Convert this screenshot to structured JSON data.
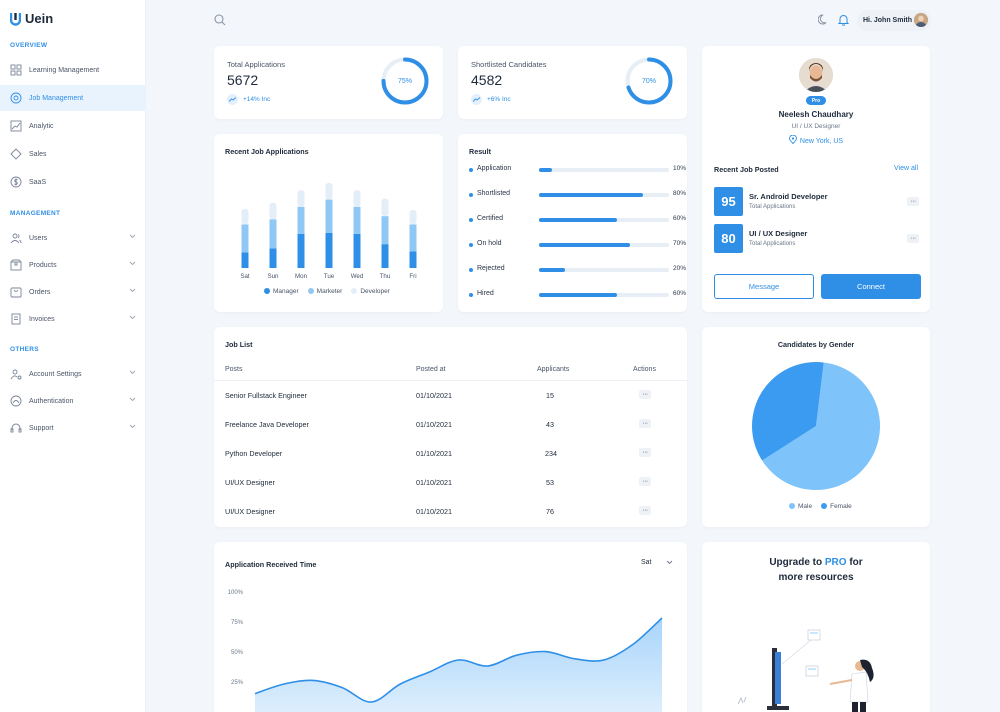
{
  "app": {
    "name": "Uein"
  },
  "sidebar": {
    "sections": [
      {
        "title": "OVERVIEW",
        "items": [
          {
            "label": "Learning Management",
            "icon": "grid-icon",
            "active": false,
            "chevron": false
          },
          {
            "label": "Job Management",
            "icon": "target-icon",
            "active": true,
            "chevron": false
          },
          {
            "label": "Analytic",
            "icon": "chart-icon",
            "active": false,
            "chevron": false
          },
          {
            "label": "Sales",
            "icon": "tag-icon",
            "active": false,
            "chevron": false
          },
          {
            "label": "SaaS",
            "icon": "dollar-icon",
            "active": false,
            "chevron": false
          }
        ]
      },
      {
        "title": "MANAGEMENT",
        "items": [
          {
            "label": "Users",
            "icon": "users-icon",
            "active": false,
            "chevron": true
          },
          {
            "label": "Products",
            "icon": "box-icon",
            "active": false,
            "chevron": true
          },
          {
            "label": "Orders",
            "icon": "cart-icon",
            "active": false,
            "chevron": true
          },
          {
            "label": "Invoices",
            "icon": "invoice-icon",
            "active": false,
            "chevron": true
          }
        ]
      },
      {
        "title": "OTHERS",
        "items": [
          {
            "label": "Account Settings",
            "icon": "user-gear-icon",
            "active": false,
            "chevron": true
          },
          {
            "label": "Authentication",
            "icon": "lock-icon",
            "active": false,
            "chevron": true
          },
          {
            "label": "Support",
            "icon": "headset-icon",
            "active": false,
            "chevron": true
          }
        ]
      }
    ]
  },
  "header": {
    "greeting": "Hi. John Smith"
  },
  "stats": [
    {
      "label": "Total Applications",
      "value": "5672",
      "trend": "+14% Inc",
      "percent": 75,
      "percent_label": "75%"
    },
    {
      "label": "Shortlisted Candidates",
      "value": "4582",
      "trend": "+6% Inc",
      "percent": 70,
      "percent_label": "70%"
    }
  ],
  "profile": {
    "badge": "Pro",
    "name": "Neelesh Chaudhary",
    "role": "UI / UX Designer",
    "location": "New York, US",
    "recent_title": "Recent Job Posted",
    "view_all": "View all",
    "posts": [
      {
        "count": "95",
        "title": "Sr. Android Developer",
        "subtitle": "Total Applications"
      },
      {
        "count": "80",
        "title": "UI / UX Designer",
        "subtitle": "Total Applications"
      }
    ],
    "message_label": "Message",
    "connect_label": "Connect"
  },
  "recent_apps": {
    "title": "Recent Job Applications",
    "chart_data": {
      "type": "bar",
      "stacked": true,
      "categories": [
        "Sat",
        "Sun",
        "Mon",
        "Tue",
        "Wed",
        "Thu",
        "Fri"
      ],
      "series": [
        {
          "name": "Manager",
          "color": "#2f8fe6",
          "values": [
            15,
            19,
            33,
            34,
            33,
            23,
            16
          ]
        },
        {
          "name": "Marketer",
          "color": "#8fc8f5",
          "values": [
            27,
            28,
            26,
            32,
            26,
            27,
            26
          ]
        },
        {
          "name": "Developer",
          "color": "#e4eef8",
          "values": [
            15,
            16,
            16,
            16,
            16,
            17,
            14
          ]
        }
      ]
    }
  },
  "result": {
    "title": "Result",
    "rows": [
      {
        "label": "Application",
        "value": 10,
        "pct": "10%"
      },
      {
        "label": "Shortlisted",
        "value": 80,
        "pct": "80%"
      },
      {
        "label": "Certified",
        "value": 60,
        "pct": "60%"
      },
      {
        "label": "On hold",
        "value": 70,
        "pct": "70%"
      },
      {
        "label": "Rejected",
        "value": 20,
        "pct": "20%"
      },
      {
        "label": "Hired",
        "value": 60,
        "pct": "60%"
      }
    ]
  },
  "job_list": {
    "title": "Job List",
    "columns": [
      "Posts",
      "Posted at",
      "Applicants",
      "Actions"
    ],
    "rows": [
      {
        "post": "Senior Fullstack Engineer",
        "date": "01/10/2021",
        "applicants": "15"
      },
      {
        "post": "Freelance Java Developer",
        "date": "01/10/2021",
        "applicants": "43"
      },
      {
        "post": "Python Developer",
        "date": "01/10/2021",
        "applicants": "234"
      },
      {
        "post": "UI/UX Designer",
        "date": "01/10/2021",
        "applicants": "53"
      },
      {
        "post": "UI/UX Designer",
        "date": "01/10/2021",
        "applicants": "76"
      }
    ]
  },
  "gender": {
    "title": "Candidates by Gender",
    "chart_data": {
      "type": "pie",
      "labels": [
        "Male",
        "Female"
      ],
      "values": [
        64,
        36
      ],
      "colors": [
        "#7ec4fa",
        "#3b9bf0"
      ]
    }
  },
  "app_time": {
    "title": "Application Received Time",
    "select_value": "Sat",
    "chart_data": {
      "type": "area",
      "yticks": [
        "100%",
        "75%",
        "50%",
        "25%"
      ],
      "ylim": [
        0,
        100
      ],
      "points": [
        17,
        25,
        28,
        22,
        10,
        25,
        35,
        45,
        40,
        49,
        52,
        46,
        45,
        58,
        80
      ],
      "color": "#2f8fe6"
    }
  },
  "upgrade": {
    "line1_pre": "Upgrade to ",
    "line1_pro": "PRO",
    "line1_post": " for",
    "line2": "more resources"
  }
}
